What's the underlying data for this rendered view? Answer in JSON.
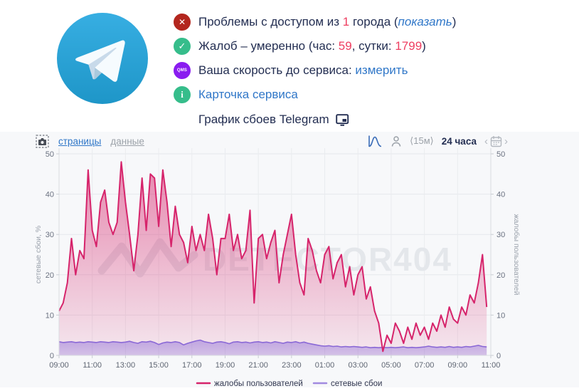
{
  "service": {
    "name": "Telegram",
    "logo_icon": "telegram-paper-plane-icon"
  },
  "status": {
    "rows": [
      {
        "icon": "error-x-icon",
        "glyph": "✕",
        "parts": {
          "a": "Проблемы с доступом из ",
          "b": "1",
          "c": " города (",
          "d": "показать",
          "e": ")"
        }
      },
      {
        "icon": "check-icon",
        "glyph": "✓",
        "parts": {
          "a": "Жалоб – умеренно (час: ",
          "b": "59",
          "c": ", сутки: ",
          "d": "1799",
          "e": ")"
        }
      },
      {
        "icon": "qms-speed-icon",
        "glyph": "QMS",
        "parts": {
          "a": "Ваша скорость до сервиса: ",
          "d": "измерить"
        }
      },
      {
        "icon": "info-icon",
        "glyph": "i",
        "parts": {
          "d": "Карточка сервиса"
        }
      }
    ]
  },
  "chart_header": {
    "title": "График сбоев Telegram",
    "title_icon": "monitor-icon"
  },
  "toolbar": {
    "screenshot_icon": "camera-screenshot-icon",
    "pages_label": "страницы",
    "data_label": "данные",
    "distribution_icon": "bell-curve-icon",
    "user_icon": "person-icon",
    "interval_label": "⟨15м⟩",
    "range_label": "24 часа",
    "calendar_prev": "‹",
    "calendar_icon": "calendar-icon",
    "calendar_next": "›"
  },
  "colors": {
    "complaints_pink": "#d6246b",
    "network_purple": "#8a68d6",
    "legend_purple": "#a18ae0",
    "link_blue": "#3077c8",
    "error_red": "#b3261e",
    "success_green": "#36bd8b",
    "qms_purple": "#8a1cf0",
    "text_dark": "#232e52",
    "watermark_gray": "#e4e7eb"
  },
  "chart_data": {
    "type": "area",
    "title": "График сбоев Telegram",
    "watermark": "DETECTOR404",
    "grid": true,
    "legend_position": "bottom",
    "ylim": [
      0,
      50
    ],
    "y_ticks": [
      0,
      10,
      20,
      30,
      40,
      50
    ],
    "ylabel_left": "сетевые сбои, %",
    "ylabel_right": "жалобы пользователей",
    "x_range_hours": [
      9,
      35
    ],
    "x_start_hour": 9,
    "x_step_minutes": 15,
    "x_tick_labels": [
      "09:00",
      "11:00",
      "13:00",
      "15:00",
      "17:00",
      "19:00",
      "21:00",
      "23:00",
      "01:00",
      "03:00",
      "05:00",
      "07:00",
      "09:00",
      "11:00"
    ],
    "series": [
      {
        "name": "жалобы пользователей",
        "color": "#d6246b",
        "values": [
          11,
          13,
          18,
          29,
          20,
          26,
          24,
          46,
          31,
          27,
          38,
          41,
          33,
          30,
          33,
          48,
          38,
          30,
          21,
          30,
          44,
          31,
          45,
          44,
          32,
          46,
          38,
          27,
          37,
          30,
          28,
          23,
          32,
          26,
          30,
          26,
          35,
          29,
          20,
          29,
          29,
          35,
          26,
          30,
          24,
          26,
          36,
          13,
          29,
          30,
          24,
          28,
          31,
          18,
          25,
          30,
          35,
          25,
          18,
          15,
          29,
          26,
          21,
          18,
          25,
          27,
          19,
          23,
          25,
          17,
          22,
          15,
          20,
          22,
          14,
          17,
          11,
          8,
          1,
          5,
          3,
          8,
          6,
          3,
          7,
          4,
          8,
          5,
          7,
          4,
          8,
          6,
          10,
          7,
          12,
          9,
          8,
          12,
          10,
          15,
          13,
          18,
          25,
          12
        ]
      },
      {
        "name": "сетевые сбои",
        "color": "#8a68d6",
        "values": [
          3.4,
          3.2,
          3.3,
          3.4,
          3.2,
          3.3,
          3.2,
          3.4,
          3.3,
          3.2,
          3.4,
          3.3,
          3.2,
          3.4,
          3.3,
          3.2,
          3.3,
          3.5,
          3.2,
          3.0,
          3.4,
          3.3,
          3.5,
          3.2,
          2.7,
          3.1,
          3.3,
          3.2,
          3.4,
          3.2,
          2.6,
          3.0,
          3.3,
          3.6,
          3.8,
          3.4,
          3.2,
          3.0,
          3.3,
          3.4,
          3.2,
          2.9,
          3.3,
          3.4,
          3.2,
          3.3,
          3.1,
          3.3,
          3.4,
          3.2,
          3.3,
          3.1,
          3.4,
          3.2,
          3.0,
          3.3,
          3.2,
          3.4,
          3.1,
          3.3,
          3.0,
          2.8,
          2.6,
          2.4,
          2.3,
          2.4,
          2.2,
          2.3,
          2.1,
          2.2,
          2.1,
          2.2,
          2.1,
          2.0,
          2.1,
          1.9,
          2.0,
          1.9,
          2.0,
          1.9,
          2.0,
          1.9,
          2.0,
          2.1,
          1.9,
          2.0,
          1.9,
          2.0,
          2.1,
          2.3,
          2.1,
          2.0,
          2.1,
          2.0,
          2.2,
          2.0,
          2.1,
          2.0,
          2.2,
          2.1,
          2.3,
          2.5,
          2.2,
          2.1
        ]
      }
    ]
  }
}
